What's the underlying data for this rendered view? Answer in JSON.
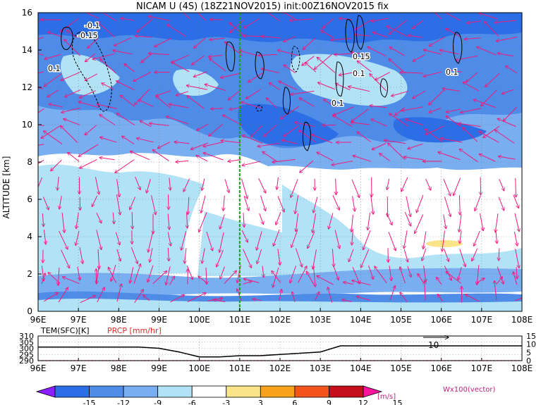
{
  "title": "NICAM U (4S) (18Z21NOV2015) init:00Z16NOV2015 fix",
  "colors": {
    "bands": [
      "#8c1eff",
      "#2b6ee6",
      "#4f8ce8",
      "#79aef0",
      "#b2e2f5",
      "#ffffff",
      "#fae48a",
      "#f7a21b",
      "#f2541b",
      "#c5101b",
      "#f5149b"
    ],
    "vector": "#f0197a",
    "contour": "#000000",
    "marker": "#1aa11a",
    "precip": "#e02a2a"
  },
  "chart_data": [
    {
      "type": "heatmap",
      "name": "cross-section",
      "xlabel": "",
      "ylabel": "ALTITUDE [km]",
      "xlim": [
        96,
        108
      ],
      "ylim": [
        0,
        16
      ],
      "xticks": [
        "96E",
        "97E",
        "98E",
        "99E",
        "100E",
        "101E",
        "102E",
        "103E",
        "104E",
        "105E",
        "106E",
        "107E",
        "108E"
      ],
      "yticks": [
        "0",
        "2",
        "4",
        "6",
        "8",
        "10",
        "12",
        "14",
        "16"
      ],
      "marker_lon": 101,
      "contour_labels": [
        "-0.1",
        "-0.15",
        "0.1",
        "0.15",
        "0.1",
        "0.1",
        "0.1"
      ],
      "vector_label": "Wx100(vector)",
      "colorbar": {
        "ticks": [
          "-15",
          "-12",
          "-9",
          "-6",
          "-3",
          "3",
          "6",
          "9",
          "12",
          "15"
        ],
        "unit": "[m/s]"
      }
    },
    {
      "type": "line",
      "name": "surface",
      "series": [
        {
          "name": "TEM(SFC)[K]",
          "values": [
            301,
            301,
            301,
            301,
            301,
            301,
            300,
            297,
            293,
            293,
            294,
            294,
            295,
            296,
            297,
            302,
            302,
            302,
            302,
            302,
            302,
            302,
            302,
            302,
            302
          ]
        },
        {
          "name": "PRCP [mm/hr]",
          "values": [
            0,
            0,
            0,
            0,
            0,
            0,
            0,
            0,
            0,
            0,
            0,
            0,
            0,
            0,
            0,
            0,
            0,
            0,
            0,
            0,
            0,
            0,
            0,
            0,
            0
          ]
        }
      ],
      "x": [
        96,
        96.5,
        97,
        97.5,
        98,
        98.5,
        99,
        99.5,
        100,
        100.5,
        101,
        101.5,
        102,
        102.5,
        103,
        103.5,
        104,
        104.5,
        105,
        105.5,
        106,
        106.5,
        107,
        107.5,
        108
      ],
      "left_ticks": [
        "290",
        "295",
        "300",
        "305",
        "310"
      ],
      "left_ylim": [
        290,
        310
      ],
      "right_ticks": [
        "0",
        "5",
        "10",
        "15"
      ],
      "right_ylim": [
        0,
        15
      ],
      "annotation": "10",
      "xticks": [
        "96E",
        "97E",
        "98E",
        "99E",
        "100E",
        "101E",
        "102E",
        "103E",
        "104E",
        "105E",
        "106E",
        "107E",
        "108E"
      ]
    }
  ]
}
